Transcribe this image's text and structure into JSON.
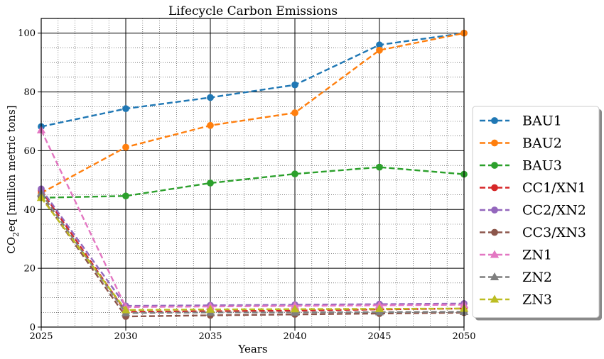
{
  "chart_data": {
    "type": "line",
    "title": "Lifecycle Carbon Emissions",
    "xlabel": "Years",
    "ylabel": "CO2eq [million metric tons]",
    "xlim": [
      2025,
      2050
    ],
    "ylim": [
      0,
      105
    ],
    "xticks": [
      2025,
      2030,
      2035,
      2040,
      2045,
      2050
    ],
    "yticks": [
      0,
      20,
      40,
      60,
      80,
      100
    ],
    "grid": true,
    "legend_position": "center-right, outside",
    "x": [
      2025,
      2030,
      2035,
      2040,
      2045,
      2050
    ],
    "series": [
      {
        "name": "BAU1",
        "marker": "circle",
        "color": "#1f77b4",
        "values": [
          68.2,
          74.3,
          78.1,
          82.4,
          96.0,
          100.0
        ]
      },
      {
        "name": "BAU2",
        "marker": "circle",
        "color": "#ff7f0e",
        "values": [
          45.6,
          61.2,
          68.6,
          72.9,
          94.2,
          100.0
        ]
      },
      {
        "name": "BAU3",
        "marker": "circle",
        "color": "#2ca02c",
        "values": [
          44.0,
          44.6,
          49.0,
          52.1,
          54.4,
          52.0
        ]
      },
      {
        "name": "CC1/XN1",
        "marker": "circle",
        "color": "#d62728",
        "values": [
          46.5,
          5.2,
          5.4,
          5.6,
          6.0,
          6.3
        ]
      },
      {
        "name": "CC2/XN2",
        "marker": "circle",
        "color": "#9467bd",
        "values": [
          47.0,
          7.2,
          7.4,
          7.6,
          7.8,
          8.0
        ]
      },
      {
        "name": "CC3/XN3",
        "marker": "circle",
        "color": "#8c564b",
        "values": [
          44.5,
          3.6,
          4.0,
          4.3,
          4.6,
          4.9
        ]
      },
      {
        "name": "ZN1",
        "marker": "triangle",
        "color": "#e377c2",
        "values": [
          67.0,
          6.8,
          7.0,
          7.2,
          7.4,
          7.6
        ]
      },
      {
        "name": "ZN2",
        "marker": "triangle",
        "color": "#7f7f7f",
        "values": [
          45.5,
          4.8,
          5.0,
          5.0,
          5.1,
          5.2
        ]
      },
      {
        "name": "ZN3",
        "marker": "triangle",
        "color": "#bcbd22",
        "values": [
          44.0,
          5.8,
          6.0,
          6.1,
          6.2,
          6.3
        ]
      }
    ]
  }
}
